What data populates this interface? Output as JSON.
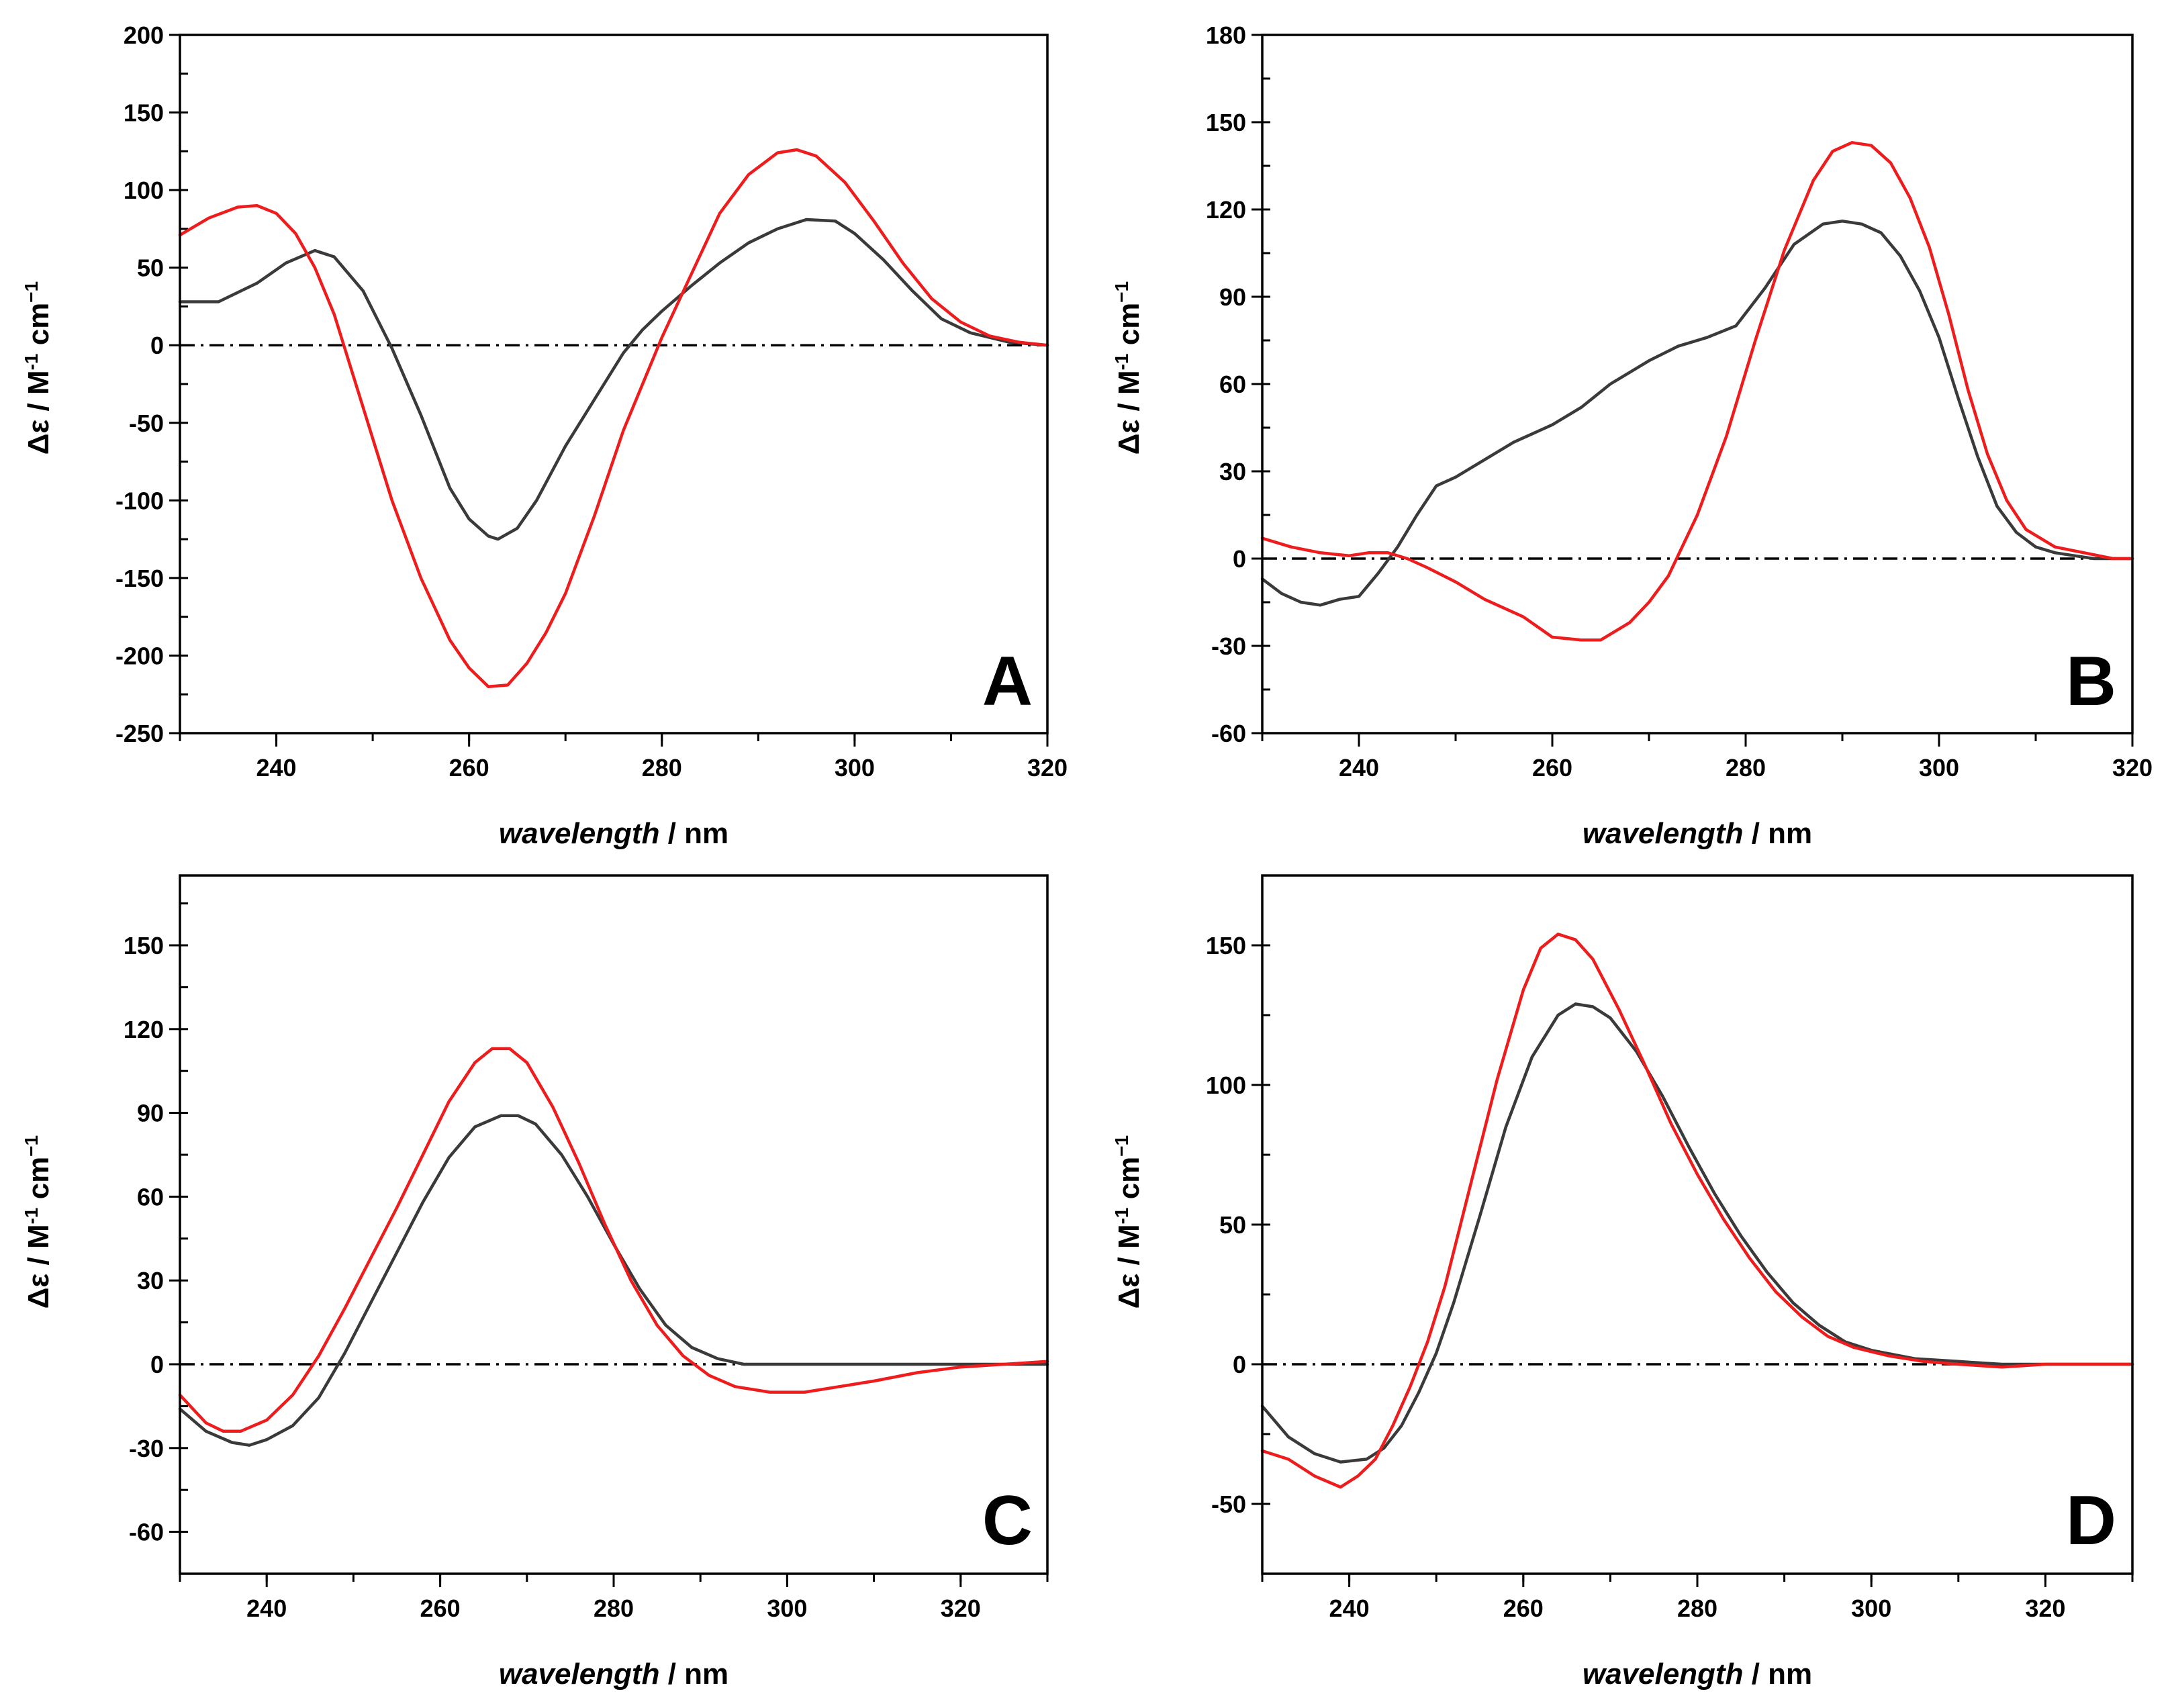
{
  "colors": {
    "series_1": "#3a3a3a",
    "series_2": "#ee1c1c",
    "zero_line": "#000000",
    "frame": "#000000"
  },
  "chart_data": [
    {
      "type": "line",
      "panel_label": "A",
      "xlabel_italic": "wavelength",
      "xlabel_unit": " / nm",
      "ylabel_main": "Δε / M",
      "ylabel_sup1": "-1",
      "ylabel_mid": " cm",
      "ylabel_sup2": "−1",
      "xlim": [
        230,
        320
      ],
      "ylim": [
        -250,
        200
      ],
      "xticks": [
        240,
        260,
        280,
        300,
        320
      ],
      "yticks": [
        -250,
        -200,
        -150,
        -100,
        -50,
        0,
        50,
        100,
        150,
        200
      ],
      "xtick_labels": [
        "240",
        "260",
        "280",
        "300",
        "320"
      ],
      "ytick_labels": [
        "-250",
        "-200",
        "-150",
        "-100",
        "-50",
        "0",
        "50",
        "100",
        "150",
        "200"
      ],
      "zero_line": true,
      "series": [
        {
          "name": "series_1",
          "x": [
            230,
            234,
            238,
            241,
            244,
            246,
            249,
            252,
            255,
            258,
            260,
            262,
            263,
            265,
            267,
            270,
            273,
            276,
            278,
            280,
            283,
            286,
            289,
            292,
            295,
            298,
            300,
            303,
            306,
            309,
            312,
            316,
            320
          ],
          "y": [
            28,
            28,
            40,
            53,
            61,
            57,
            35,
            -2,
            -45,
            -92,
            -112,
            -123,
            -125,
            -118,
            -100,
            -65,
            -35,
            -5,
            10,
            22,
            38,
            53,
            66,
            75,
            81,
            80,
            72,
            55,
            35,
            17,
            8,
            2,
            0
          ]
        },
        {
          "name": "series_2",
          "x": [
            230,
            233,
            236,
            238,
            240,
            242,
            244,
            246,
            248,
            250,
            252,
            255,
            258,
            260,
            262,
            264,
            266,
            268,
            270,
            273,
            276,
            278,
            280,
            283,
            286,
            289,
            292,
            294,
            296,
            299,
            302,
            305,
            308,
            311,
            314,
            317,
            320
          ],
          "y": [
            71,
            82,
            89,
            90,
            85,
            72,
            50,
            20,
            -20,
            -60,
            -100,
            -150,
            -190,
            -208,
            -220,
            -219,
            -205,
            -185,
            -160,
            -110,
            -55,
            -25,
            5,
            45,
            85,
            110,
            124,
            126,
            122,
            105,
            80,
            53,
            30,
            15,
            6,
            2,
            0
          ]
        }
      ]
    },
    {
      "type": "line",
      "panel_label": "B",
      "xlabel_italic": "wavelength",
      "xlabel_unit": " / nm",
      "ylabel_main": "Δε / M",
      "ylabel_sup1": "-1",
      "ylabel_mid": " cm",
      "ylabel_sup2": "−1",
      "xlim": [
        230,
        320
      ],
      "ylim": [
        -60,
        180
      ],
      "xticks": [
        240,
        260,
        280,
        300,
        320
      ],
      "yticks": [
        -60,
        -30,
        0,
        30,
        60,
        90,
        120,
        150,
        180
      ],
      "xtick_labels": [
        "240",
        "260",
        "280",
        "300",
        "320"
      ],
      "ytick_labels": [
        "-60",
        "-30",
        "0",
        "30",
        "60",
        "90",
        "120",
        "150",
        "180"
      ],
      "zero_line": true,
      "series": [
        {
          "name": "series_1",
          "x": [
            230,
            232,
            234,
            236,
            238,
            240,
            242,
            244,
            246,
            248,
            250,
            253,
            256,
            260,
            263,
            266,
            270,
            273,
            276,
            279,
            282,
            285,
            288,
            290,
            292,
            294,
            296,
            298,
            300,
            302,
            304,
            306,
            308,
            310,
            312,
            314,
            316,
            318,
            320
          ],
          "y": [
            -7,
            -12,
            -15,
            -16,
            -14,
            -13,
            -5,
            4,
            15,
            25,
            28,
            34,
            40,
            46,
            52,
            60,
            68,
            73,
            76,
            80,
            93,
            108,
            115,
            116,
            115,
            112,
            104,
            92,
            76,
            55,
            35,
            18,
            9,
            4,
            2,
            1,
            0,
            0,
            0
          ]
        },
        {
          "name": "series_2",
          "x": [
            230,
            233,
            236,
            239,
            241,
            243,
            245,
            247,
            250,
            253,
            257,
            260,
            263,
            265,
            268,
            270,
            272,
            275,
            278,
            281,
            284,
            287,
            289,
            291,
            293,
            295,
            297,
            299,
            301,
            303,
            305,
            307,
            309,
            312,
            315,
            318,
            320
          ],
          "y": [
            7,
            4,
            2,
            1,
            2,
            2,
            0,
            -3,
            -8,
            -14,
            -20,
            -27,
            -28,
            -28,
            -22,
            -15,
            -6,
            15,
            42,
            75,
            106,
            130,
            140,
            143,
            142,
            136,
            124,
            107,
            84,
            58,
            36,
            20,
            10,
            4,
            2,
            0,
            0
          ]
        }
      ]
    },
    {
      "type": "line",
      "panel_label": "C",
      "xlabel_italic": "wavelength",
      "xlabel_unit": " / nm",
      "ylabel_main": "Δε / M",
      "ylabel_sup1": "-1",
      "ylabel_mid": " cm",
      "ylabel_sup2": "−1",
      "xlim": [
        230,
        330
      ],
      "ylim": [
        -75,
        175
      ],
      "xticks": [
        240,
        260,
        280,
        300,
        320
      ],
      "yticks": [
        -60,
        -30,
        0,
        30,
        60,
        90,
        120,
        150
      ],
      "xtick_labels": [
        "240",
        "260",
        "280",
        "300",
        "320"
      ],
      "ytick_labels": [
        "-60",
        "-30",
        "0",
        "30",
        "60",
        "90",
        "120",
        "150"
      ],
      "zero_line": true,
      "series": [
        {
          "name": "series_1",
          "x": [
            230,
            233,
            236,
            238,
            240,
            243,
            246,
            249,
            252,
            255,
            258,
            261,
            264,
            267,
            269,
            271,
            274,
            277,
            280,
            283,
            286,
            289,
            292,
            295,
            298,
            302,
            306,
            310,
            315,
            320,
            325,
            330
          ],
          "y": [
            -16,
            -24,
            -28,
            -29,
            -27,
            -22,
            -12,
            4,
            22,
            40,
            58,
            74,
            85,
            89,
            89,
            86,
            75,
            60,
            43,
            27,
            14,
            6,
            2,
            0,
            0,
            0,
            0,
            0,
            0,
            0,
            0,
            0
          ]
        },
        {
          "name": "series_2",
          "x": [
            230,
            233,
            235,
            237,
            240,
            243,
            246,
            249,
            252,
            255,
            258,
            261,
            264,
            266,
            268,
            270,
            273,
            276,
            279,
            282,
            285,
            288,
            291,
            294,
            298,
            302,
            306,
            310,
            315,
            320,
            325,
            330
          ],
          "y": [
            -11,
            -21,
            -24,
            -24,
            -20,
            -11,
            3,
            20,
            38,
            56,
            75,
            94,
            108,
            113,
            113,
            108,
            92,
            72,
            50,
            30,
            14,
            3,
            -4,
            -8,
            -10,
            -10,
            -8,
            -6,
            -3,
            -1,
            0,
            1
          ]
        }
      ]
    },
    {
      "type": "line",
      "panel_label": "D",
      "xlabel_italic": "wavelength",
      "xlabel_unit": " / nm",
      "ylabel_main": "Δε / M",
      "ylabel_sup1": "-1",
      "ylabel_mid": " cm",
      "ylabel_sup2": "−1",
      "xlim": [
        230,
        330
      ],
      "ylim": [
        -75,
        175
      ],
      "xticks": [
        240,
        260,
        280,
        300,
        320
      ],
      "yticks": [
        -50,
        0,
        50,
        100,
        150
      ],
      "xtick_labels": [
        "240",
        "260",
        "280",
        "300",
        "320"
      ],
      "ytick_labels": [
        "-50",
        "0",
        "50",
        "100",
        "150"
      ],
      "zero_line": true,
      "series": [
        {
          "name": "series_1",
          "x": [
            230,
            233,
            236,
            239,
            242,
            244,
            246,
            248,
            250,
            252,
            255,
            258,
            261,
            264,
            266,
            268,
            270,
            273,
            276,
            279,
            282,
            285,
            288,
            291,
            294,
            297,
            300,
            305,
            310,
            315,
            320,
            325,
            330
          ],
          "y": [
            -15,
            -26,
            -32,
            -35,
            -34,
            -30,
            -22,
            -10,
            4,
            22,
            53,
            85,
            110,
            125,
            129,
            128,
            124,
            112,
            96,
            78,
            61,
            46,
            33,
            22,
            14,
            8,
            5,
            2,
            1,
            0,
            0,
            0,
            0
          ]
        },
        {
          "name": "series_2",
          "x": [
            230,
            233,
            236,
            239,
            241,
            243,
            245,
            247,
            249,
            251,
            254,
            257,
            260,
            262,
            264,
            266,
            268,
            271,
            274,
            277,
            280,
            283,
            286,
            289,
            292,
            295,
            298,
            302,
            306,
            310,
            315,
            320,
            325,
            330
          ],
          "y": [
            -31,
            -34,
            -40,
            -44,
            -40,
            -34,
            -22,
            -8,
            8,
            28,
            65,
            102,
            134,
            149,
            154,
            152,
            145,
            127,
            107,
            86,
            68,
            52,
            38,
            26,
            17,
            10,
            6,
            3,
            1,
            0,
            -1,
            0,
            0,
            0
          ]
        }
      ]
    }
  ]
}
